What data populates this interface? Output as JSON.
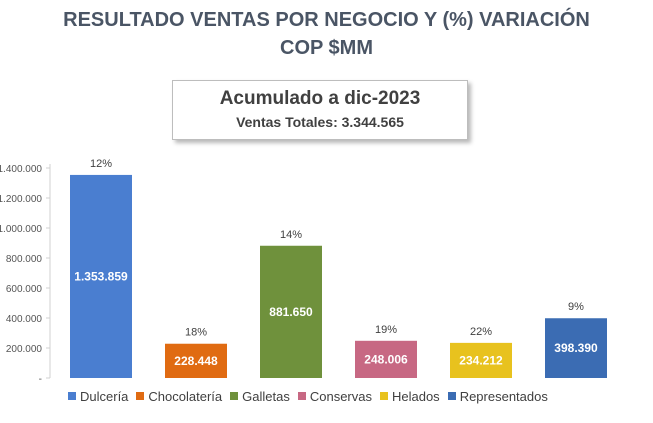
{
  "title_line1": "RESULTADO VENTAS POR NEGOCIO Y (%) VARIACIÓN",
  "title_line2": "COP $MM",
  "box": {
    "heading": "Acumulado a dic-2023",
    "subheading": "Ventas Totales: 3.344.565"
  },
  "chart_data": {
    "type": "bar",
    "categories": [
      "Dulcería",
      "Chocolatería",
      "Galletas",
      "Conservas",
      "Helados",
      "Representados"
    ],
    "values": [
      1353859,
      228448,
      881650,
      248006,
      234212,
      398390
    ],
    "value_labels": [
      "1.353.859",
      "228.448",
      "881.650",
      "248.006",
      "234.212",
      "398.390"
    ],
    "variation_labels": [
      "12%",
      "18%",
      "14%",
      "19%",
      "22%",
      "9%"
    ],
    "colors": [
      "#4a7ed0",
      "#e06b12",
      "#6f913c",
      "#c76883",
      "#e8c21e",
      "#3b6cb3"
    ],
    "ylim": [
      0,
      1400000
    ],
    "yticks": [
      0,
      200000,
      400000,
      600000,
      800000,
      1000000,
      1200000,
      1400000
    ],
    "ytick_labels": [
      "-",
      "200.000",
      "400.000",
      "600.000",
      "800.000",
      "1.000.000",
      "1.200.000",
      "1.400.000"
    ],
    "legend_position": "bottom",
    "grid": false
  }
}
